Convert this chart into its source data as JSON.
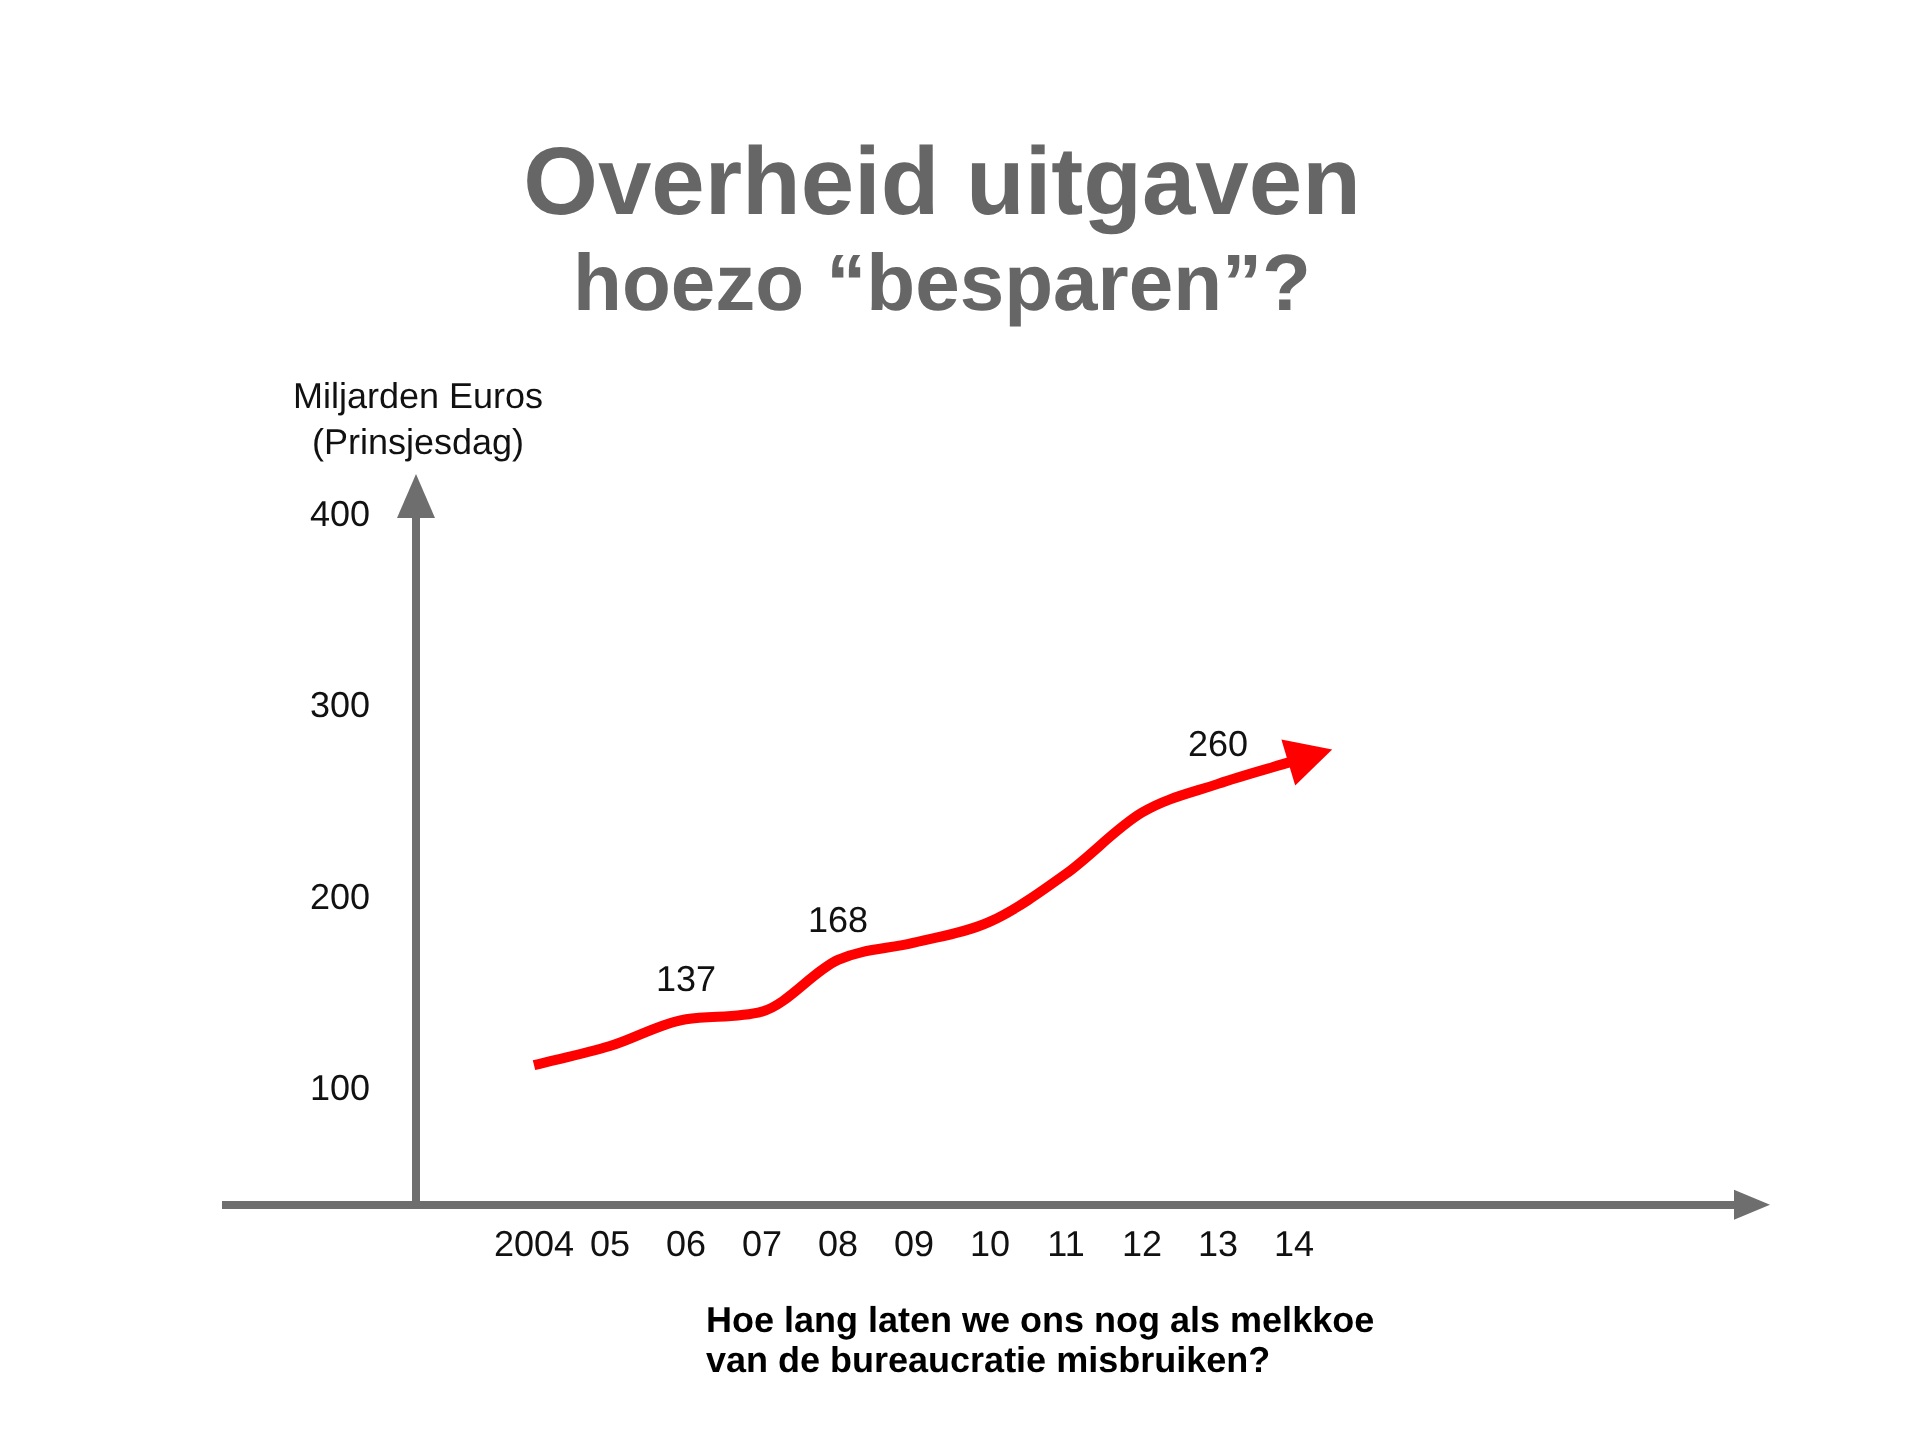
{
  "chart_data": {
    "type": "line",
    "title": "Overheid uitgaven",
    "subtitle": "hoezo “besparen”?",
    "ylabel": "Miljarden Euros (Prinsjesdag)",
    "annotations": [
      "Hoe lang laten we ons nog als melkkoe van de bureaucratie misbruiken?"
    ],
    "categories": [
      "2004",
      "05",
      "06",
      "07",
      "08",
      "09",
      "10",
      "11",
      "12",
      "13",
      "14"
    ],
    "series": [
      {
        "color": "#ff0000",
        "values": [
          113,
          123,
          137,
          141,
          168,
          177,
          188,
          213,
          245,
          260,
          272
        ],
        "value_labels": [
          null,
          null,
          "137",
          null,
          "168",
          null,
          null,
          null,
          null,
          "260",
          null
        ]
      }
    ],
    "ylim": [
      40,
      400
    ],
    "yticks": [
      100,
      200,
      300,
      400
    ],
    "marker": "none",
    "line_style": "solid"
  }
}
